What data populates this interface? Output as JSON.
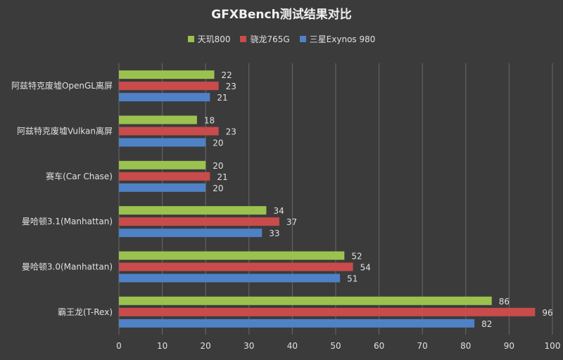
{
  "chart_data": {
    "type": "bar",
    "orientation": "horizontal",
    "title": "GFXBench测试结果对比",
    "categories": [
      "阿兹特克废墟OpenGL离屏",
      "阿兹特克废墟Vulkan离屏",
      "赛车(Car Chase)",
      "曼哈顿3.1(Manhattan)",
      "曼哈顿3.0(Manhattan)",
      "霸王龙(T-Rex)"
    ],
    "series": [
      {
        "name": "天玑800",
        "color": "#9bc24f",
        "values": [
          22,
          18,
          20,
          34,
          52,
          86
        ]
      },
      {
        "name": "骁龙765G",
        "color": "#c94b4b",
        "values": [
          23,
          23,
          21,
          37,
          54,
          96
        ]
      },
      {
        "name": "三星Exynos 980",
        "color": "#4f81c7",
        "values": [
          21,
          20,
          20,
          33,
          51,
          82
        ]
      }
    ],
    "xlim": [
      0,
      100
    ],
    "xticks": [
      0,
      10,
      20,
      30,
      40,
      50,
      60,
      70,
      80,
      90,
      100
    ],
    "grid": true,
    "legend_position": "top",
    "data_labels": true,
    "xlabel": "",
    "ylabel": ""
  },
  "colors": {
    "background": "#3b3b3b",
    "grid": "#6a6a6a",
    "axis_text": "#e0e0e0"
  }
}
